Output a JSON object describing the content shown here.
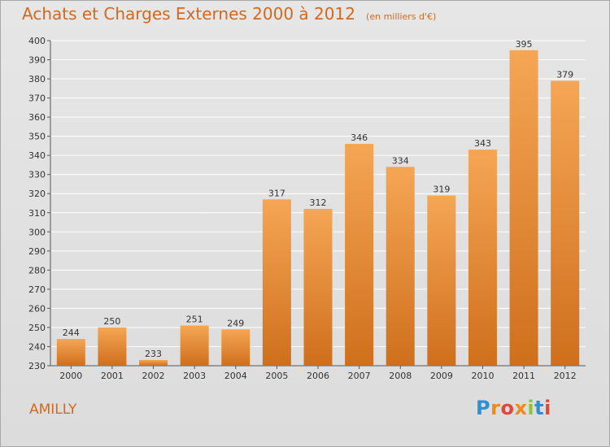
{
  "header": {
    "title": "Achats et Charges Externes 2000 à 2012",
    "subtitle": "(en milliers d'€)"
  },
  "footer": {
    "place": "AMILLY",
    "brand": "Proxiti"
  },
  "colors": {
    "title": "#d2691e",
    "bar_top": "#f5a655",
    "bar_bottom": "#cf6f1c",
    "grid": "#ffffff"
  },
  "chart_data": {
    "type": "bar",
    "categories": [
      "2000",
      "2001",
      "2002",
      "2003",
      "2004",
      "2005",
      "2006",
      "2007",
      "2008",
      "2009",
      "2010",
      "2011",
      "2012"
    ],
    "values": [
      244,
      250,
      233,
      251,
      249,
      317,
      312,
      346,
      334,
      319,
      343,
      395,
      379
    ],
    "title": "Achats et Charges Externes 2000 à 2012",
    "ylim": [
      230,
      400
    ],
    "yticks": [
      230,
      240,
      250,
      260,
      270,
      280,
      290,
      300,
      310,
      320,
      330,
      340,
      350,
      360,
      370,
      380,
      390,
      400
    ],
    "grid": true,
    "legend": "none"
  }
}
